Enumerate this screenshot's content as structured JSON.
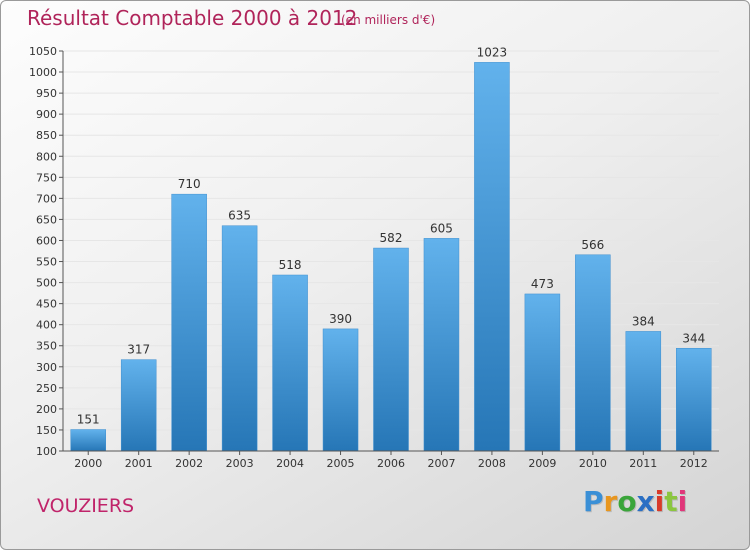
{
  "header": {
    "title": "Résultat Comptable 2000 à 2012",
    "subtitle": "(en milliers d'€)"
  },
  "footer": {
    "commune": "VOUZIERS",
    "logo": {
      "letters": [
        "P",
        "r",
        "o",
        "x",
        "i",
        "t",
        "i"
      ],
      "colors": [
        "#3a8fd6",
        "#e8961e",
        "#3aa53a",
        "#2a6fc4",
        "#d93a2a",
        "#8bc63f",
        "#e0367a"
      ]
    }
  },
  "colors": {
    "bar_light": "#62b2ec",
    "bar_dark": "#2676b6",
    "grid": "#e6e6e6",
    "axis": "#555555"
  },
  "chart_data": {
    "type": "bar",
    "title": "Résultat Comptable 2000 à 2012",
    "subtitle": "(en milliers d'€)",
    "categories": [
      "2000",
      "2001",
      "2002",
      "2003",
      "2004",
      "2005",
      "2006",
      "2007",
      "2008",
      "2009",
      "2010",
      "2011",
      "2012"
    ],
    "values": [
      151,
      317,
      710,
      635,
      518,
      390,
      582,
      605,
      1023,
      473,
      566,
      384,
      344
    ],
    "ylim": [
      100,
      1050
    ],
    "yticks": [
      100,
      150,
      200,
      250,
      300,
      350,
      400,
      450,
      500,
      550,
      600,
      650,
      700,
      750,
      800,
      850,
      900,
      950,
      1000,
      1050
    ],
    "grid": true,
    "xlabel": "",
    "ylabel": ""
  }
}
